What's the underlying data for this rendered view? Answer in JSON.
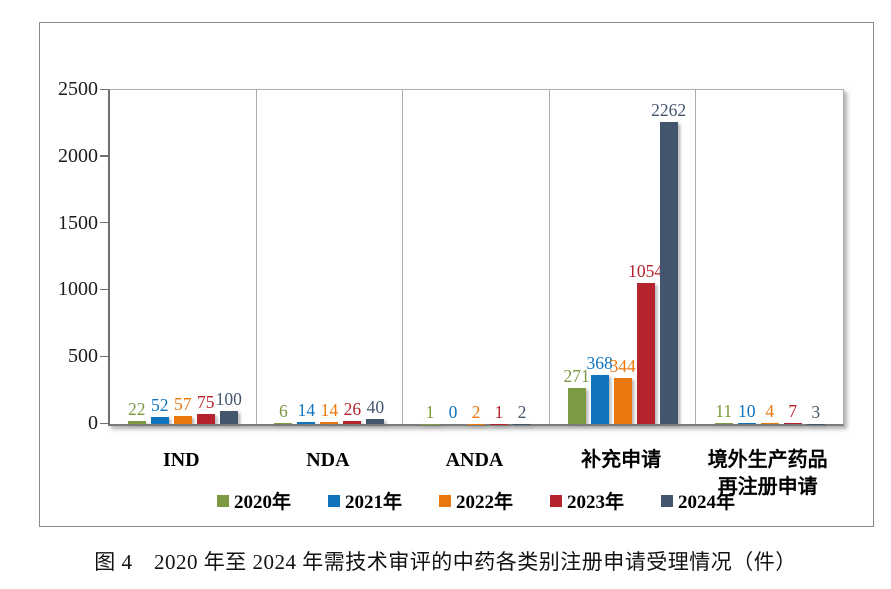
{
  "figure": {
    "caption": "图 4　2020 年至 2024 年需技术审评的中药各类别注册申请受理情况（件）"
  },
  "chart_data": {
    "type": "bar",
    "title": "",
    "categories": [
      "IND",
      "NDA",
      "ANDA",
      "补充申请",
      "境外生产药品\n再注册申请"
    ],
    "series": [
      {
        "name": "2020年",
        "color": "#7C9A41",
        "values": [
          22,
          6,
          1,
          271,
          11
        ]
      },
      {
        "name": "2021年",
        "color": "#0F74BC",
        "values": [
          52,
          14,
          0,
          368,
          10
        ]
      },
      {
        "name": "2022年",
        "color": "#E8780D",
        "values": [
          57,
          14,
          2,
          344,
          4
        ]
      },
      {
        "name": "2023年",
        "color": "#B5232D",
        "values": [
          75,
          26,
          1,
          1054,
          7
        ]
      },
      {
        "name": "2024年",
        "color": "#44566E",
        "values": [
          100,
          40,
          2,
          2262,
          3
        ]
      }
    ],
    "ylim": [
      0,
      2500
    ],
    "yticks": [
      0,
      500,
      1000,
      1500,
      2000,
      2500
    ],
    "grid": "category-separators",
    "legend_position": "bottom",
    "value_labels": "outside-end"
  }
}
